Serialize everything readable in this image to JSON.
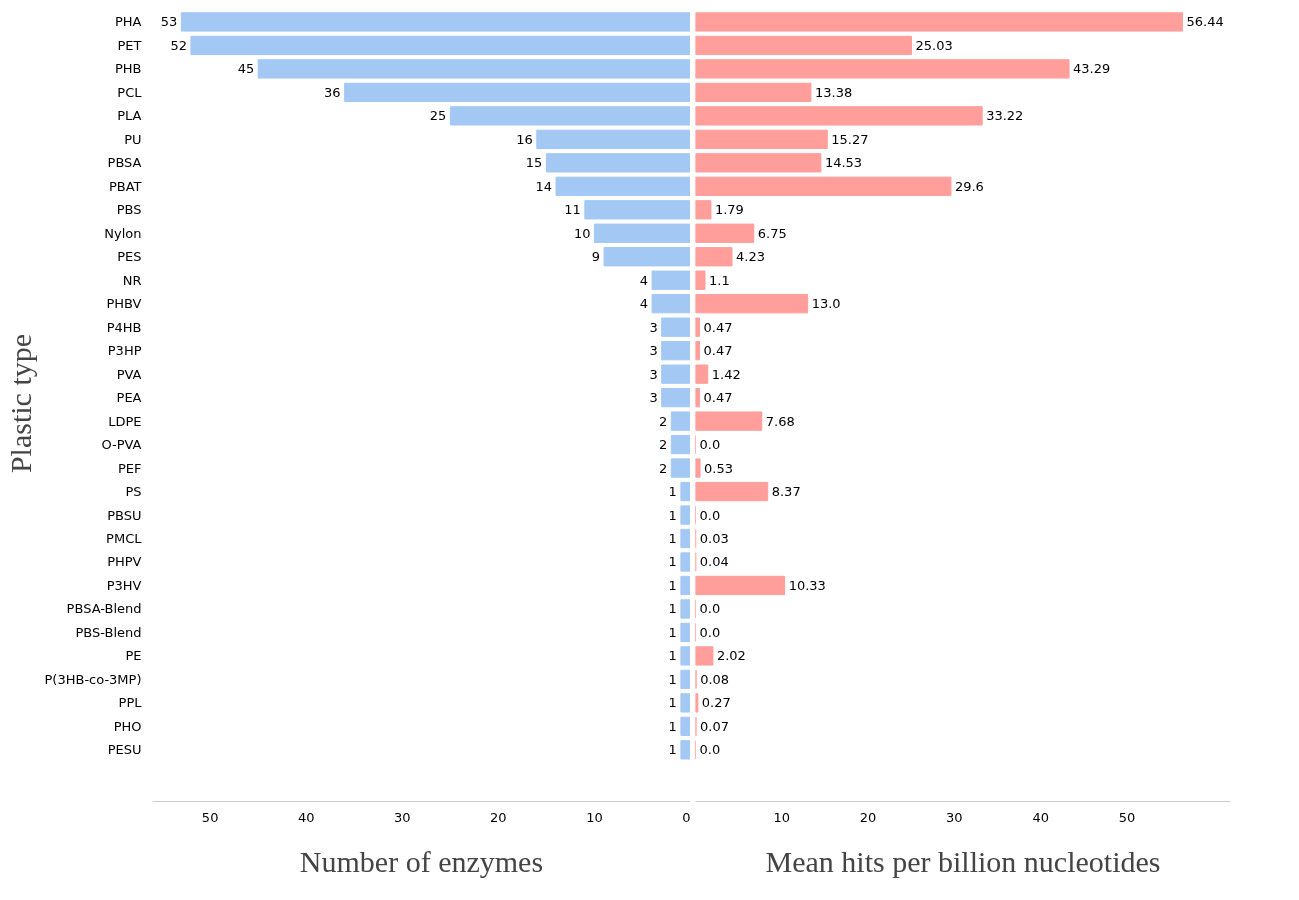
{
  "chart_data": [
    {
      "type": "bar",
      "orientation": "horizontal",
      "ylabel": "Plastic type",
      "xlabel": "Number of enzymes",
      "categories": [
        "PHA",
        "PET",
        "PHB",
        "PCL",
        "PLA",
        "PU",
        "PBSA",
        "PBAT",
        "PBS",
        "Nylon",
        "PES",
        "NR",
        "PHBV",
        "P4HB",
        "P3HP",
        "PVA",
        "PEA",
        "LDPE",
        "O-PVA",
        "PEF",
        "PS",
        "PBSU",
        "PMCL",
        "PHPV",
        "P3HV",
        "PBSA-Blend",
        "PBS-Blend",
        "PE",
        "P(3HB-co-3MP)",
        "PPL",
        "PHO",
        "PESU"
      ],
      "series": [
        {
          "color": "#a3c8f4",
          "values": [
            53,
            52,
            45,
            36,
            25,
            16,
            15,
            14,
            11,
            10,
            9,
            4,
            4,
            3,
            3,
            3,
            3,
            2,
            2,
            2,
            1,
            1,
            1,
            1,
            1,
            1,
            1,
            1,
            1,
            1,
            1,
            1
          ]
        }
      ],
      "xlim": [
        56,
        0
      ],
      "xticks": [
        50,
        40,
        30,
        20,
        10,
        0
      ],
      "data_labels": true,
      "grid": false
    },
    {
      "type": "bar",
      "orientation": "horizontal",
      "xlabel": "Mean hits per billion nucleotides",
      "series": [
        {
          "color": "#ff9e9b",
          "values": [
            56.44,
            25.03,
            43.29,
            13.38,
            33.22,
            15.27,
            14.53,
            29.6,
            1.79,
            6.75,
            4.23,
            1.1,
            13.0,
            0.47,
            0.47,
            1.42,
            0.47,
            7.68,
            0.0,
            0.53,
            8.37,
            0.0,
            0.03,
            0.04,
            10.33,
            0.0,
            0.0,
            2.02,
            0.08,
            0.27,
            0.07,
            0.0
          ],
          "value_labels": [
            "56.44",
            "25.03",
            "43.29",
            "13.38",
            "33.22",
            "15.27",
            "14.53",
            "29.6",
            "1.79",
            "6.75",
            "4.23",
            "1.1",
            "13.0",
            "0.47",
            "0.47",
            "1.42",
            "0.47",
            "7.68",
            "0.0",
            "0.53",
            "8.37",
            "0.0",
            "0.03",
            "0.04",
            "10.33",
            "0.0",
            "0.0",
            "2.02",
            "0.08",
            "0.27",
            "0.07",
            "0.0"
          ]
        }
      ],
      "xlim": [
        0,
        62
      ],
      "xticks": [
        10,
        20,
        30,
        40,
        50
      ],
      "tick_labels": "x",
      "grid": false
    }
  ]
}
